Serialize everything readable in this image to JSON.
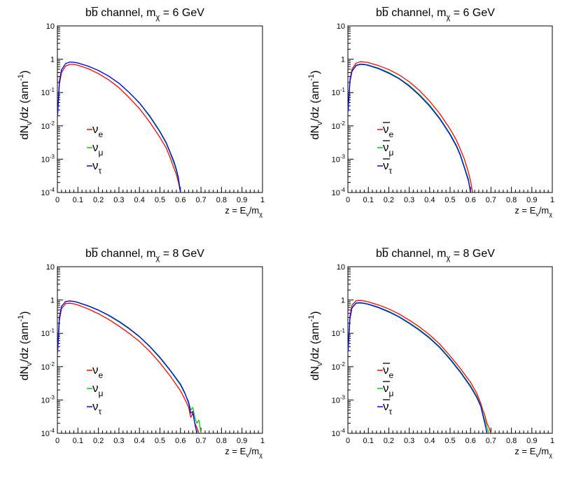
{
  "chart_data": [
    {
      "type": "line",
      "title": "bb̅ channel, m",
      "title_sub": "χ",
      "title_tail": " = 6 GeV",
      "ylabel": "dN",
      "ylabel_sub": "ν",
      "ylabel_tail": "/dz (ann",
      "ylabel_sup": "-1",
      "ylabel_close": ")",
      "xlabel": "z = E",
      "xlabel_sub1": "ν",
      "xlabel_mid": "/m",
      "xlabel_sub2": "χ",
      "xlim": [
        0,
        1
      ],
      "ylim": [
        0.0001,
        10
      ],
      "y_scale": "log",
      "x_ticks": [
        "0",
        "0.1",
        "0.2",
        "0.3",
        "0.4",
        "0.5",
        "0.6",
        "0.7",
        "0.8",
        "0.9",
        "1"
      ],
      "y_ticks": [
        {
          "base": "10",
          "exp": "-4"
        },
        {
          "base": "10",
          "exp": "-3"
        },
        {
          "base": "10",
          "exp": "-2"
        },
        {
          "base": "10",
          "exp": "-1"
        },
        {
          "base": "1",
          "exp": ""
        },
        {
          "base": "10",
          "exp": ""
        }
      ],
      "legend": [
        {
          "label": "ν",
          "sub": "e",
          "bar": false,
          "color": "#ff0000"
        },
        {
          "label": "ν",
          "sub": "μ",
          "bar": false,
          "color": "#00cc00"
        },
        {
          "label": "ν",
          "sub": "τ",
          "bar": false,
          "color": "#0000ff"
        }
      ],
      "series": [
        {
          "color": "#ff0000",
          "x": [
            0.001,
            0.01,
            0.02,
            0.04,
            0.06,
            0.08,
            0.1,
            0.15,
            0.2,
            0.25,
            0.3,
            0.35,
            0.4,
            0.45,
            0.5,
            0.53,
            0.55,
            0.57,
            0.58,
            0.59,
            0.6
          ],
          "y": [
            0.02,
            0.18,
            0.4,
            0.62,
            0.7,
            0.7,
            0.66,
            0.52,
            0.37,
            0.24,
            0.14,
            0.07,
            0.033,
            0.013,
            0.0045,
            0.0022,
            0.0011,
            0.0005,
            0.00035,
            0.0002,
            0.0001
          ]
        },
        {
          "color": "#00cc00",
          "x": [
            0.001,
            0.01,
            0.02,
            0.04,
            0.06,
            0.08,
            0.1,
            0.15,
            0.2,
            0.25,
            0.3,
            0.35,
            0.4,
            0.45,
            0.5,
            0.53,
            0.55,
            0.57,
            0.58,
            0.59,
            0.6
          ],
          "y": [
            0.022,
            0.22,
            0.48,
            0.74,
            0.82,
            0.81,
            0.77,
            0.62,
            0.46,
            0.31,
            0.19,
            0.1,
            0.048,
            0.019,
            0.0065,
            0.003,
            0.0015,
            0.0007,
            0.00045,
            0.00025,
            0.0001
          ]
        },
        {
          "color": "#0000ff",
          "x": [
            0.001,
            0.01,
            0.02,
            0.04,
            0.06,
            0.08,
            0.1,
            0.15,
            0.2,
            0.25,
            0.3,
            0.35,
            0.4,
            0.45,
            0.5,
            0.53,
            0.55,
            0.57,
            0.58,
            0.59,
            0.6
          ],
          "y": [
            0.022,
            0.22,
            0.48,
            0.74,
            0.82,
            0.81,
            0.77,
            0.62,
            0.46,
            0.31,
            0.19,
            0.1,
            0.049,
            0.02,
            0.0068,
            0.0032,
            0.0016,
            0.0008,
            0.0005,
            0.00028,
            0.0001
          ]
        }
      ]
    },
    {
      "type": "line",
      "title": "bb̅ channel, m",
      "title_sub": "χ",
      "title_tail": " = 6 GeV",
      "ylabel": "dN",
      "ylabel_sub": "ν",
      "ylabel_tail": "/dz (ann",
      "ylabel_sup": "-1",
      "ylabel_close": ")",
      "xlabel": "z = E",
      "xlabel_sub1": "ν",
      "xlabel_mid": "/m",
      "xlabel_sub2": "χ",
      "xlim": [
        0,
        1
      ],
      "ylim": [
        0.0001,
        10
      ],
      "y_scale": "log",
      "x_ticks": [
        "0",
        "0.1",
        "0.2",
        "0.3",
        "0.4",
        "0.5",
        "0.6",
        "0.7",
        "0.8",
        "0.9",
        "1"
      ],
      "y_ticks": [
        {
          "base": "10",
          "exp": "-4"
        },
        {
          "base": "10",
          "exp": "-3"
        },
        {
          "base": "10",
          "exp": "-2"
        },
        {
          "base": "10",
          "exp": "-1"
        },
        {
          "base": "1",
          "exp": ""
        },
        {
          "base": "10",
          "exp": ""
        }
      ],
      "legend": [
        {
          "label": "ν",
          "sub": "e",
          "bar": true,
          "color": "#ff0000"
        },
        {
          "label": "ν",
          "sub": "μ",
          "bar": true,
          "color": "#00cc00"
        },
        {
          "label": "ν",
          "sub": "τ",
          "bar": true,
          "color": "#0000ff"
        }
      ],
      "series": [
        {
          "color": "#ff0000",
          "x": [
            0.001,
            0.01,
            0.02,
            0.04,
            0.06,
            0.08,
            0.1,
            0.15,
            0.2,
            0.25,
            0.3,
            0.35,
            0.4,
            0.45,
            0.5,
            0.53,
            0.55,
            0.57,
            0.59,
            0.6,
            0.61
          ],
          "y": [
            0.03,
            0.25,
            0.5,
            0.76,
            0.84,
            0.83,
            0.79,
            0.64,
            0.49,
            0.34,
            0.21,
            0.115,
            0.055,
            0.023,
            0.008,
            0.0038,
            0.002,
            0.001,
            0.0004,
            0.00022,
            0.0001
          ]
        },
        {
          "color": "#00cc00",
          "x": [
            0.001,
            0.01,
            0.02,
            0.04,
            0.06,
            0.08,
            0.1,
            0.15,
            0.2,
            0.25,
            0.3,
            0.35,
            0.4,
            0.45,
            0.5,
            0.53,
            0.55,
            0.57,
            0.59,
            0.6
          ],
          "y": [
            0.028,
            0.22,
            0.44,
            0.66,
            0.72,
            0.71,
            0.67,
            0.54,
            0.4,
            0.27,
            0.165,
            0.088,
            0.042,
            0.017,
            0.0058,
            0.0027,
            0.0014,
            0.0006,
            0.00025,
            0.0001
          ]
        },
        {
          "color": "#0000ff",
          "x": [
            0.001,
            0.01,
            0.02,
            0.04,
            0.06,
            0.08,
            0.1,
            0.15,
            0.2,
            0.25,
            0.3,
            0.35,
            0.4,
            0.45,
            0.5,
            0.53,
            0.55,
            0.57,
            0.59,
            0.6
          ],
          "y": [
            0.027,
            0.21,
            0.43,
            0.64,
            0.7,
            0.69,
            0.65,
            0.52,
            0.38,
            0.26,
            0.155,
            0.082,
            0.039,
            0.016,
            0.0054,
            0.0025,
            0.0013,
            0.00055,
            0.00022,
            0.0001
          ]
        }
      ]
    },
    {
      "type": "line",
      "title": "bb̅ channel, m",
      "title_sub": "χ",
      "title_tail": " = 8 GeV",
      "ylabel": "dN",
      "ylabel_sub": "ν",
      "ylabel_tail": "/dz (ann",
      "ylabel_sup": "-1",
      "ylabel_close": ")",
      "xlabel": "z = E",
      "xlabel_sub1": "ν",
      "xlabel_mid": "/m",
      "xlabel_sub2": "χ",
      "xlim": [
        0,
        1
      ],
      "ylim": [
        0.0001,
        10
      ],
      "y_scale": "log",
      "x_ticks": [
        "0",
        "0.1",
        "0.2",
        "0.3",
        "0.4",
        "0.5",
        "0.6",
        "0.7",
        "0.8",
        "0.9",
        "1"
      ],
      "y_ticks": [
        {
          "base": "10",
          "exp": "-4"
        },
        {
          "base": "10",
          "exp": "-3"
        },
        {
          "base": "10",
          "exp": "-2"
        },
        {
          "base": "10",
          "exp": "-1"
        },
        {
          "base": "1",
          "exp": ""
        },
        {
          "base": "10",
          "exp": ""
        }
      ],
      "legend": [
        {
          "label": "ν",
          "sub": "e",
          "bar": false,
          "color": "#ff0000"
        },
        {
          "label": "ν",
          "sub": "μ",
          "bar": false,
          "color": "#00cc00"
        },
        {
          "label": "ν",
          "sub": "τ",
          "bar": false,
          "color": "#0000ff"
        }
      ],
      "series": [
        {
          "color": "#ff0000",
          "x": [
            0.001,
            0.01,
            0.02,
            0.04,
            0.06,
            0.08,
            0.1,
            0.15,
            0.2,
            0.25,
            0.3,
            0.35,
            0.4,
            0.45,
            0.5,
            0.55,
            0.6,
            0.62,
            0.64,
            0.65,
            0.66,
            0.67,
            0.68,
            0.69
          ],
          "y": [
            0.025,
            0.25,
            0.55,
            0.78,
            0.8,
            0.77,
            0.71,
            0.54,
            0.39,
            0.26,
            0.165,
            0.1,
            0.057,
            0.029,
            0.013,
            0.0052,
            0.0019,
            0.0011,
            0.0006,
            0.0003,
            0.0004,
            0.0002,
            0.00015,
            0.0001
          ]
        },
        {
          "color": "#00cc00",
          "x": [
            0.001,
            0.01,
            0.02,
            0.04,
            0.06,
            0.08,
            0.1,
            0.15,
            0.2,
            0.25,
            0.3,
            0.35,
            0.4,
            0.45,
            0.5,
            0.55,
            0.6,
            0.62,
            0.64,
            0.65,
            0.66,
            0.67,
            0.68,
            0.69,
            0.7
          ],
          "y": [
            0.03,
            0.3,
            0.65,
            0.9,
            0.93,
            0.9,
            0.84,
            0.66,
            0.49,
            0.34,
            0.22,
            0.135,
            0.078,
            0.04,
            0.018,
            0.0075,
            0.0028,
            0.0016,
            0.0009,
            0.0005,
            0.0006,
            0.0003,
            0.0002,
            0.00025,
            0.0001
          ]
        },
        {
          "color": "#0000ff",
          "x": [
            0.001,
            0.01,
            0.02,
            0.04,
            0.06,
            0.08,
            0.1,
            0.15,
            0.2,
            0.25,
            0.3,
            0.35,
            0.4,
            0.45,
            0.5,
            0.55,
            0.6,
            0.62,
            0.64,
            0.65,
            0.66,
            0.67,
            0.68
          ],
          "y": [
            0.03,
            0.3,
            0.65,
            0.9,
            0.94,
            0.91,
            0.85,
            0.67,
            0.5,
            0.35,
            0.23,
            0.14,
            0.08,
            0.041,
            0.019,
            0.0078,
            0.003,
            0.0017,
            0.0008,
            0.0004,
            0.00045,
            0.0002,
            0.0001
          ]
        }
      ]
    },
    {
      "type": "line",
      "title": "bb̅ channel, m",
      "title_sub": "χ",
      "title_tail": " = 8 GeV",
      "ylabel": "dN",
      "ylabel_sub": "ν",
      "ylabel_tail": "/dz (ann",
      "ylabel_sup": "-1",
      "ylabel_close": ")",
      "xlabel": "z = E",
      "xlabel_sub1": "ν",
      "xlabel_mid": "/m",
      "xlabel_sub2": "χ",
      "xlim": [
        0,
        1
      ],
      "ylim": [
        0.0001,
        10
      ],
      "y_scale": "log",
      "x_ticks": [
        "0",
        "0.1",
        "0.2",
        "0.3",
        "0.4",
        "0.5",
        "0.6",
        "0.7",
        "0.8",
        "0.9",
        "1"
      ],
      "y_ticks": [
        {
          "base": "10",
          "exp": "-4"
        },
        {
          "base": "10",
          "exp": "-3"
        },
        {
          "base": "10",
          "exp": "-2"
        },
        {
          "base": "10",
          "exp": "-1"
        },
        {
          "base": "1",
          "exp": ""
        },
        {
          "base": "10",
          "exp": ""
        }
      ],
      "legend": [
        {
          "label": "ν",
          "sub": "e",
          "bar": true,
          "color": "#ff0000"
        },
        {
          "label": "ν",
          "sub": "μ",
          "bar": true,
          "color": "#00cc00"
        },
        {
          "label": "ν",
          "sub": "τ",
          "bar": true,
          "color": "#0000ff"
        }
      ],
      "series": [
        {
          "color": "#ff0000",
          "x": [
            0.001,
            0.01,
            0.02,
            0.04,
            0.06,
            0.08,
            0.1,
            0.15,
            0.2,
            0.25,
            0.3,
            0.35,
            0.4,
            0.45,
            0.5,
            0.55,
            0.6,
            0.63,
            0.65,
            0.66,
            0.67,
            0.68,
            0.69,
            0.7
          ],
          "y": [
            0.035,
            0.33,
            0.7,
            0.95,
            0.97,
            0.94,
            0.88,
            0.71,
            0.54,
            0.38,
            0.25,
            0.155,
            0.09,
            0.047,
            0.021,
            0.0088,
            0.0034,
            0.0016,
            0.0008,
            0.0005,
            0.00035,
            0.0002,
            0.00015,
            0.0001
          ]
        },
        {
          "color": "#00cc00",
          "x": [
            0.001,
            0.01,
            0.02,
            0.04,
            0.06,
            0.08,
            0.1,
            0.15,
            0.2,
            0.25,
            0.3,
            0.35,
            0.4,
            0.45,
            0.5,
            0.55,
            0.6,
            0.63,
            0.65,
            0.66,
            0.67,
            0.68,
            0.69
          ],
          "y": [
            0.03,
            0.28,
            0.6,
            0.82,
            0.84,
            0.81,
            0.76,
            0.61,
            0.46,
            0.32,
            0.21,
            0.13,
            0.075,
            0.039,
            0.0175,
            0.0072,
            0.0027,
            0.0013,
            0.0007,
            0.0004,
            0.00025,
            0.00015,
            0.0001
          ]
        },
        {
          "color": "#0000ff",
          "x": [
            0.001,
            0.01,
            0.02,
            0.04,
            0.06,
            0.08,
            0.1,
            0.15,
            0.2,
            0.25,
            0.3,
            0.35,
            0.4,
            0.45,
            0.5,
            0.55,
            0.6,
            0.63,
            0.65,
            0.66,
            0.67,
            0.68
          ],
          "y": [
            0.029,
            0.27,
            0.58,
            0.8,
            0.82,
            0.79,
            0.74,
            0.59,
            0.44,
            0.31,
            0.2,
            0.123,
            0.071,
            0.037,
            0.0165,
            0.0068,
            0.0025,
            0.0012,
            0.00065,
            0.00035,
            0.0002,
            0.0001
          ]
        }
      ]
    }
  ]
}
